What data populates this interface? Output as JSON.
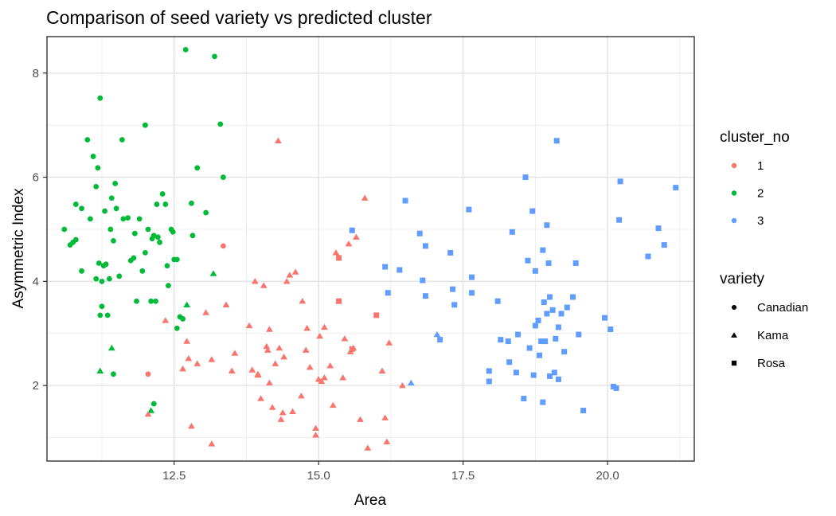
{
  "chart_data": {
    "type": "scatter",
    "title": "Comparison of seed variety vs predicted cluster",
    "xlabel": "Area",
    "ylabel": "Asymmetric Index",
    "xlim": [
      10.3,
      21.5
    ],
    "ylim": [
      0.55,
      8.7
    ],
    "x_ticks": [
      12.5,
      15.0,
      17.5,
      20.0
    ],
    "x_tick_labels": [
      "12.5",
      "15.0",
      "17.5",
      "20.0"
    ],
    "y_ticks": [
      2,
      4,
      6,
      8
    ],
    "y_tick_labels": [
      "2",
      "4",
      "6",
      "8"
    ],
    "grid": true,
    "legend_position": "right",
    "color_legend": {
      "title": "cluster_no",
      "entries": [
        {
          "label": "1",
          "color": "#F8766D"
        },
        {
          "label": "2",
          "color": "#00BA38"
        },
        {
          "label": "3",
          "color": "#619CFF"
        }
      ]
    },
    "shape_legend": {
      "title": "variety",
      "entries": [
        {
          "label": "Canadian",
          "shape": "circle"
        },
        {
          "label": "Kama",
          "shape": "triangle"
        },
        {
          "label": "Rosa",
          "shape": "square"
        }
      ]
    },
    "series": [
      {
        "cluster": "2",
        "variety": "Canadian",
        "points": [
          [
            10.6,
            5.0
          ],
          [
            10.7,
            4.7
          ],
          [
            10.75,
            4.75
          ],
          [
            10.8,
            4.8
          ],
          [
            10.8,
            5.48
          ],
          [
            10.9,
            5.4
          ],
          [
            10.9,
            4.2
          ],
          [
            11.0,
            6.72
          ],
          [
            11.05,
            5.2
          ],
          [
            11.1,
            6.4
          ],
          [
            11.15,
            4.05
          ],
          [
            11.15,
            5.82
          ],
          [
            11.18,
            6.18
          ],
          [
            11.2,
            4.35
          ],
          [
            11.22,
            3.35
          ],
          [
            11.22,
            7.52
          ],
          [
            11.25,
            3.52
          ],
          [
            11.25,
            4.0
          ],
          [
            11.28,
            4.3
          ],
          [
            11.3,
            5.35
          ],
          [
            11.32,
            4.33
          ],
          [
            11.35,
            3.35
          ],
          [
            11.38,
            4.05
          ],
          [
            11.4,
            5.0
          ],
          [
            11.42,
            5.6
          ],
          [
            11.45,
            4.78
          ],
          [
            11.45,
            2.22
          ],
          [
            11.48,
            5.88
          ],
          [
            11.5,
            5.4
          ],
          [
            11.55,
            4.1
          ],
          [
            11.6,
            6.72
          ],
          [
            11.62,
            5.2
          ],
          [
            11.7,
            5.22
          ],
          [
            11.75,
            4.4
          ],
          [
            11.8,
            4.45
          ],
          [
            11.82,
            4.92
          ],
          [
            11.85,
            3.62
          ],
          [
            11.9,
            5.2
          ],
          [
            11.95,
            4.2
          ],
          [
            12.0,
            4.55
          ],
          [
            12.0,
            7.0
          ],
          [
            12.05,
            5.0
          ],
          [
            12.1,
            3.62
          ],
          [
            12.12,
            4.82
          ],
          [
            12.15,
            4.88
          ],
          [
            12.18,
            3.62
          ],
          [
            12.2,
            5.48
          ],
          [
            12.22,
            4.85
          ],
          [
            12.25,
            4.75
          ],
          [
            12.3,
            5.68
          ],
          [
            12.35,
            5.48
          ],
          [
            12.38,
            4.3
          ],
          [
            12.4,
            3.92
          ],
          [
            12.45,
            5.0
          ],
          [
            12.48,
            4.95
          ],
          [
            12.5,
            4.42
          ],
          [
            12.55,
            4.42
          ],
          [
            12.55,
            3.1
          ],
          [
            12.6,
            3.32
          ],
          [
            12.65,
            3.28
          ],
          [
            12.7,
            8.45
          ],
          [
            12.8,
            5.5
          ],
          [
            12.82,
            4.88
          ],
          [
            12.9,
            6.18
          ],
          [
            13.05,
            5.32
          ],
          [
            13.2,
            8.32
          ],
          [
            13.3,
            7.02
          ],
          [
            13.35,
            6.0
          ],
          [
            12.15,
            1.65
          ]
        ]
      },
      {
        "cluster": "2",
        "variety": "Kama",
        "points": [
          [
            11.22,
            2.28
          ],
          [
            11.42,
            2.72
          ],
          [
            12.1,
            1.52
          ],
          [
            12.72,
            3.55
          ],
          [
            13.18,
            4.15
          ]
        ]
      },
      {
        "cluster": "1",
        "variety": "Canadian",
        "points": [
          [
            12.05,
            2.22
          ],
          [
            13.35,
            4.68
          ]
        ]
      },
      {
        "cluster": "1",
        "variety": "Kama",
        "points": [
          [
            12.05,
            1.45
          ],
          [
            12.35,
            3.25
          ],
          [
            12.65,
            2.32
          ],
          [
            12.72,
            2.85
          ],
          [
            12.75,
            2.52
          ],
          [
            12.8,
            1.22
          ],
          [
            12.9,
            2.42
          ],
          [
            13.05,
            3.4
          ],
          [
            13.15,
            2.5
          ],
          [
            13.15,
            0.88
          ],
          [
            13.4,
            3.55
          ],
          [
            13.5,
            2.28
          ],
          [
            13.55,
            2.62
          ],
          [
            13.8,
            3.15
          ],
          [
            13.85,
            2.3
          ],
          [
            13.9,
            4.0
          ],
          [
            13.95,
            2.2
          ],
          [
            14.05,
            3.92
          ],
          [
            14.1,
            2.75
          ],
          [
            14.12,
            2.68
          ],
          [
            14.15,
            3.08
          ],
          [
            14.15,
            2.05
          ],
          [
            14.2,
            1.58
          ],
          [
            14.25,
            2.42
          ],
          [
            14.3,
            6.7
          ],
          [
            14.32,
            2.72
          ],
          [
            14.35,
            1.35
          ],
          [
            14.38,
            1.48
          ],
          [
            14.4,
            2.55
          ],
          [
            14.45,
            4.0
          ],
          [
            14.5,
            4.12
          ],
          [
            14.55,
            1.5
          ],
          [
            14.6,
            4.18
          ],
          [
            14.7,
            1.8
          ],
          [
            14.72,
            3.62
          ],
          [
            14.78,
            2.68
          ],
          [
            14.8,
            3.1
          ],
          [
            14.85,
            2.35
          ],
          [
            14.95,
            1.18
          ],
          [
            14.95,
            1.05
          ],
          [
            15.0,
            2.12
          ],
          [
            15.02,
            2.95
          ],
          [
            15.05,
            2.08
          ],
          [
            15.1,
            3.12
          ],
          [
            15.2,
            2.38
          ],
          [
            15.25,
            1.62
          ],
          [
            15.3,
            4.55
          ],
          [
            15.35,
            3.62
          ],
          [
            15.42,
            2.15
          ],
          [
            15.45,
            2.9
          ],
          [
            15.52,
            4.72
          ],
          [
            15.55,
            2.65
          ],
          [
            15.6,
            2.72
          ],
          [
            15.65,
            4.85
          ],
          [
            15.72,
            1.35
          ],
          [
            15.8,
            5.6
          ],
          [
            15.85,
            0.8
          ],
          [
            16.1,
            2.28
          ],
          [
            16.15,
            1.38
          ],
          [
            16.18,
            0.92
          ],
          [
            16.22,
            2.82
          ],
          [
            16.45,
            2.0
          ],
          [
            13.95,
            2.22
          ],
          [
            15.1,
            2.15
          ],
          [
            14.0,
            1.75
          ]
        ]
      },
      {
        "cluster": "1",
        "variety": "Rosa",
        "points": [
          [
            15.35,
            4.45
          ],
          [
            15.35,
            3.62
          ],
          [
            15.58,
            2.7
          ],
          [
            16.0,
            3.35
          ]
        ]
      },
      {
        "cluster": "3",
        "variety": "Canadian",
        "points": []
      },
      {
        "cluster": "3",
        "variety": "Kama",
        "points": [
          [
            16.6,
            2.05
          ],
          [
            17.05,
            2.98
          ]
        ]
      },
      {
        "cluster": "3",
        "variety": "Rosa",
        "points": [
          [
            15.58,
            4.98
          ],
          [
            16.15,
            4.28
          ],
          [
            16.2,
            3.78
          ],
          [
            16.4,
            4.22
          ],
          [
            16.5,
            5.55
          ],
          [
            16.75,
            4.92
          ],
          [
            16.8,
            4.02
          ],
          [
            16.85,
            3.72
          ],
          [
            16.85,
            4.68
          ],
          [
            17.1,
            2.88
          ],
          [
            17.28,
            4.55
          ],
          [
            17.32,
            3.85
          ],
          [
            17.35,
            3.55
          ],
          [
            17.6,
            5.38
          ],
          [
            17.65,
            4.08
          ],
          [
            17.65,
            3.78
          ],
          [
            17.95,
            2.28
          ],
          [
            17.95,
            2.08
          ],
          [
            18.1,
            3.62
          ],
          [
            18.15,
            2.88
          ],
          [
            18.28,
            2.85
          ],
          [
            18.3,
            2.45
          ],
          [
            18.35,
            4.95
          ],
          [
            18.42,
            2.25
          ],
          [
            18.45,
            2.98
          ],
          [
            18.55,
            1.75
          ],
          [
            18.58,
            6.0
          ],
          [
            18.62,
            4.4
          ],
          [
            18.65,
            2.72
          ],
          [
            18.7,
            5.35
          ],
          [
            18.72,
            2.2
          ],
          [
            18.75,
            3.15
          ],
          [
            18.75,
            4.2
          ],
          [
            18.8,
            3.25
          ],
          [
            18.82,
            2.58
          ],
          [
            18.85,
            2.85
          ],
          [
            18.88,
            4.6
          ],
          [
            18.88,
            1.68
          ],
          [
            18.9,
            3.6
          ],
          [
            18.92,
            2.85
          ],
          [
            18.95,
            5.08
          ],
          [
            18.95,
            3.38
          ],
          [
            18.98,
            4.35
          ],
          [
            19.0,
            2.18
          ],
          [
            19.0,
            3.7
          ],
          [
            19.05,
            3.45
          ],
          [
            19.08,
            2.25
          ],
          [
            19.1,
            2.9
          ],
          [
            19.12,
            6.7
          ],
          [
            19.15,
            2.12
          ],
          [
            19.15,
            3.12
          ],
          [
            19.2,
            3.38
          ],
          [
            19.25,
            2.65
          ],
          [
            19.3,
            3.5
          ],
          [
            19.4,
            3.7
          ],
          [
            19.45,
            4.35
          ],
          [
            19.5,
            2.98
          ],
          [
            19.58,
            1.52
          ],
          [
            19.95,
            3.3
          ],
          [
            20.05,
            3.08
          ],
          [
            20.1,
            1.98
          ],
          [
            20.15,
            1.95
          ],
          [
            20.2,
            5.18
          ],
          [
            20.22,
            5.92
          ],
          [
            20.7,
            4.48
          ],
          [
            20.88,
            5.02
          ],
          [
            20.98,
            4.7
          ],
          [
            21.18,
            5.8
          ]
        ]
      }
    ]
  }
}
